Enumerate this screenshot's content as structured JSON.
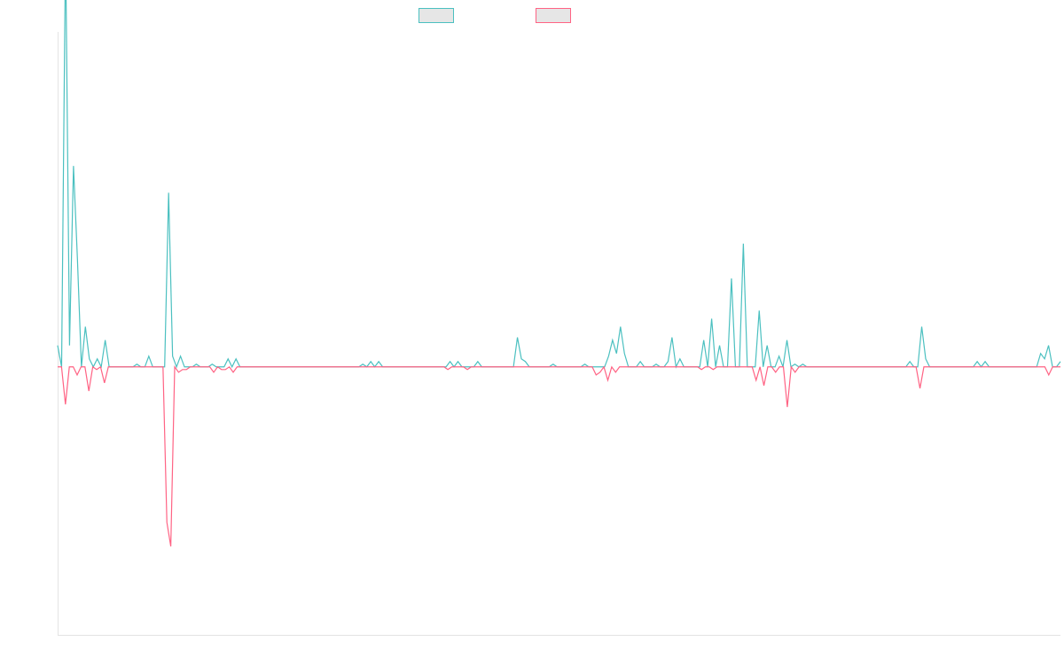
{
  "chart_data": {
    "type": "line",
    "title": "",
    "xlabel": "",
    "ylabel": "",
    "ylim": [
      -1,
      1.25
    ],
    "grid": false,
    "legend_position": "top-center",
    "series": [
      {
        "name": "",
        "color": "#4bc0c0",
        "values": [
          0.08,
          0,
          1.58,
          0.08,
          0.75,
          0.4,
          0,
          0.15,
          0.03,
          0,
          0.03,
          0,
          0.1,
          0,
          0,
          0,
          0,
          0,
          0,
          0,
          0.01,
          0,
          0,
          0.04,
          0,
          0,
          0,
          0,
          0.65,
          0.04,
          0,
          0.04,
          0,
          0,
          0,
          0.01,
          0,
          0,
          0,
          0.01,
          0,
          0,
          0,
          0.03,
          0,
          0.03,
          0,
          0,
          0,
          0,
          0,
          0,
          0,
          0,
          0,
          0,
          0,
          0,
          0,
          0,
          0,
          0,
          0,
          0,
          0,
          0,
          0,
          0,
          0,
          0,
          0,
          0,
          0,
          0,
          0,
          0,
          0,
          0.01,
          0,
          0.02,
          0,
          0.02,
          0,
          0,
          0,
          0,
          0,
          0,
          0,
          0,
          0,
          0,
          0,
          0,
          0,
          0,
          0,
          0,
          0,
          0.02,
          0,
          0.02,
          0,
          0,
          0,
          0,
          0.02,
          0,
          0,
          0,
          0,
          0,
          0,
          0,
          0,
          0,
          0.11,
          0.03,
          0.02,
          0,
          0,
          0,
          0,
          0,
          0,
          0.01,
          0,
          0,
          0,
          0,
          0,
          0,
          0,
          0.01,
          0,
          0,
          0,
          0,
          0,
          0.04,
          0.1,
          0.05,
          0.15,
          0.05,
          0,
          0,
          0,
          0.02,
          0,
          0,
          0,
          0.01,
          0,
          0,
          0.02,
          0.11,
          0,
          0.03,
          0,
          0,
          0,
          0,
          0,
          0.1,
          0,
          0.18,
          0,
          0.08,
          0,
          0,
          0.33,
          0,
          0,
          0.46,
          0,
          0,
          0,
          0.21,
          0,
          0.08,
          0,
          0,
          0.04,
          0,
          0.1,
          0,
          0.01,
          0,
          0.01,
          0,
          0,
          0,
          0,
          0,
          0,
          0,
          0,
          0,
          0,
          0,
          0,
          0,
          0,
          0,
          0,
          0,
          0,
          0,
          0,
          0,
          0,
          0,
          0,
          0,
          0,
          0.02,
          0,
          0,
          0.15,
          0.03,
          0,
          0,
          0,
          0,
          0,
          0,
          0,
          0,
          0,
          0,
          0,
          0,
          0.02,
          0,
          0.02,
          0,
          0,
          0,
          0,
          0,
          0,
          0,
          0,
          0,
          0,
          0,
          0,
          0,
          0.05,
          0.03,
          0.08,
          0,
          0,
          0.02
        ]
      },
      {
        "name": "",
        "color": "#ff6384",
        "values": [
          0,
          0,
          -0.14,
          0,
          0,
          -0.03,
          0,
          0,
          -0.09,
          0,
          -0.01,
          0,
          -0.06,
          0,
          0,
          0,
          0,
          0,
          0,
          0,
          0,
          0,
          0,
          0,
          0,
          0,
          0,
          0,
          -0.58,
          -0.67,
          0,
          -0.02,
          -0.01,
          -0.01,
          0,
          0,
          0,
          0,
          0,
          0,
          -0.02,
          0,
          -0.01,
          -0.01,
          0,
          -0.02,
          0,
          0,
          0,
          0,
          0,
          0,
          0,
          0,
          0,
          0,
          0,
          0,
          0,
          0,
          0,
          0,
          0,
          0,
          0,
          0,
          0,
          0,
          0,
          0,
          0,
          0,
          0,
          0,
          0,
          0,
          0,
          0,
          0,
          0,
          0,
          0,
          0,
          0,
          0,
          0,
          0,
          0,
          0,
          0,
          0,
          0,
          0,
          0,
          0,
          0,
          0,
          0,
          0,
          0,
          -0.01,
          0,
          0,
          0,
          0,
          -0.01,
          0,
          0,
          0,
          0,
          0,
          0,
          0,
          0,
          0,
          0,
          0,
          0,
          0,
          0,
          0,
          0,
          0,
          0,
          0,
          0,
          0,
          0,
          0,
          0,
          0,
          0,
          0,
          0,
          0,
          0,
          0,
          0,
          -0.03,
          -0.02,
          0,
          -0.05,
          0,
          -0.02,
          0,
          0,
          0,
          0,
          0,
          0,
          0,
          0,
          0,
          0,
          0,
          0,
          0,
          0,
          0,
          0,
          0,
          0,
          0,
          0,
          0,
          -0.01,
          0,
          0,
          -0.01,
          0,
          0,
          0,
          0,
          0,
          0,
          0,
          0,
          0,
          0,
          -0.05,
          0,
          -0.07,
          0,
          0,
          -0.02,
          0,
          0,
          -0.15,
          0,
          -0.02,
          0,
          0,
          0,
          0,
          0,
          0,
          0,
          0,
          0,
          0,
          0,
          0,
          0,
          0,
          0,
          0,
          0,
          0,
          0,
          0,
          0,
          0,
          0,
          0,
          0,
          0,
          0,
          0,
          0,
          0,
          0,
          -0.08,
          0,
          0,
          0,
          0,
          0,
          0,
          0,
          0,
          0,
          0,
          0,
          0,
          0,
          0,
          0,
          0,
          0,
          0,
          0,
          0,
          0,
          0,
          0,
          0,
          0,
          0,
          0,
          0,
          0,
          0,
          0,
          0,
          -0.03,
          0,
          0,
          0
        ]
      }
    ]
  }
}
